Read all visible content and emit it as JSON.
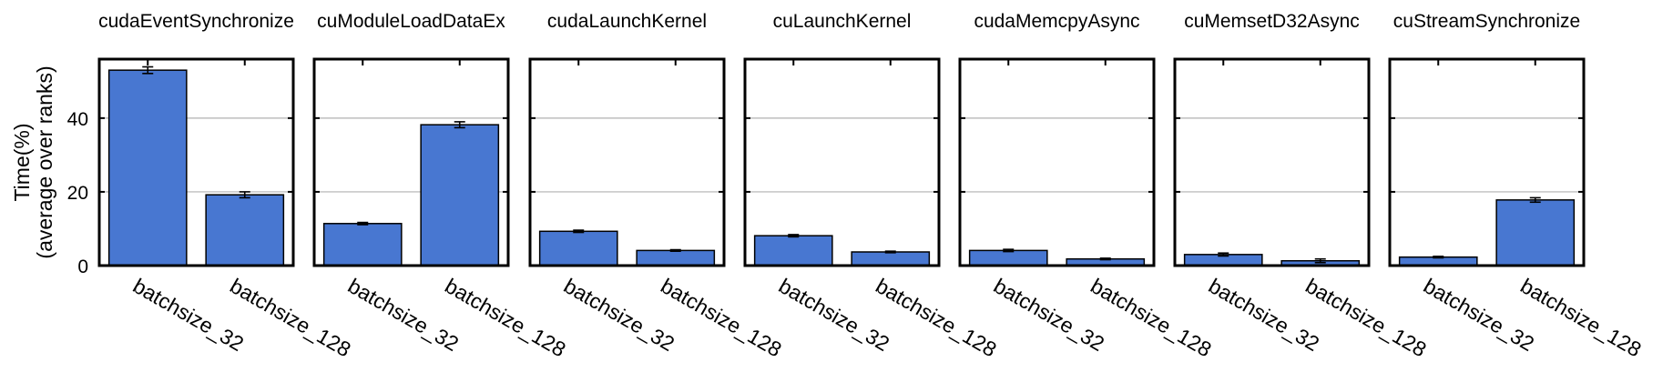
{
  "chart_data": {
    "type": "bar",
    "ylabel": [
      "Time(%)",
      "(average over ranks)"
    ],
    "ylim": [
      0,
      56
    ],
    "yticks": [
      0,
      20,
      40
    ],
    "grid": "horizontal",
    "categories": [
      "batchsize_32",
      "batchsize_128"
    ],
    "bar_color": "#4877d1",
    "panels": [
      {
        "title": "cudaEventSynchronize",
        "values": [
          53.0,
          19.2
        ],
        "errors": [
          0.9,
          0.8
        ]
      },
      {
        "title": "cuModuleLoadDataEx",
        "values": [
          11.4,
          38.2
        ],
        "errors": [
          0.3,
          0.8
        ]
      },
      {
        "title": "cudaLaunchKernel",
        "values": [
          9.3,
          4.1
        ],
        "errors": [
          0.3,
          0.2
        ]
      },
      {
        "title": "cuLaunchKernel",
        "values": [
          8.1,
          3.7
        ],
        "errors": [
          0.3,
          0.2
        ]
      },
      {
        "title": "cudaMemcpyAsync",
        "values": [
          4.1,
          1.8
        ],
        "errors": [
          0.3,
          0.2
        ]
      },
      {
        "title": "cuMemsetD32Async",
        "values": [
          3.0,
          1.3
        ],
        "errors": [
          0.4,
          0.5
        ]
      },
      {
        "title": "cuStreamSynchronize",
        "values": [
          2.3,
          17.8
        ],
        "errors": [
          0.2,
          0.6
        ]
      }
    ]
  }
}
